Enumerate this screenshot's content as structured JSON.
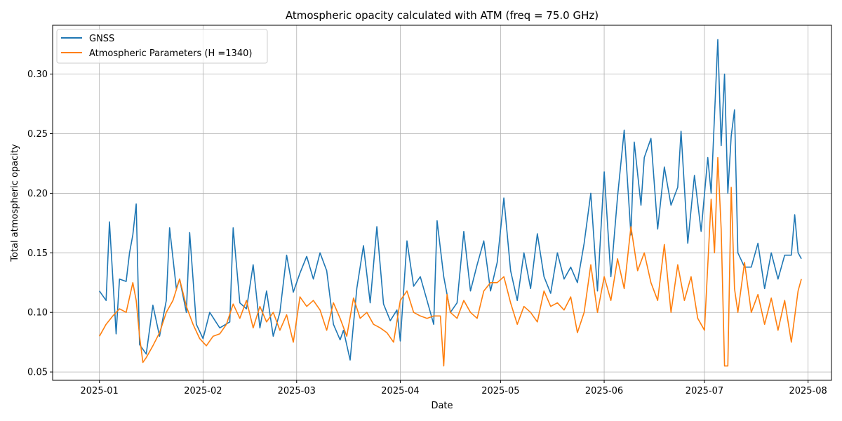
{
  "chart_data": {
    "type": "line",
    "title": "Atmospheric opacity calculated with ATM (freq = 75.0 GHz)",
    "xlabel": "Date",
    "ylabel": "Total atmospheric opacity",
    "x_type": "date",
    "xlim": [
      "2024-12-18",
      "2025-08-08"
    ],
    "ylim": [
      0.043,
      0.341
    ],
    "xticks": [
      "2025-01-01",
      "2025-02-01",
      "2025-03-01",
      "2025-04-01",
      "2025-05-01",
      "2025-06-01",
      "2025-07-01",
      "2025-08-01"
    ],
    "xtick_labels": [
      "2025-01",
      "2025-02",
      "2025-03",
      "2025-04",
      "2025-05",
      "2025-06",
      "2025-07",
      "2025-08"
    ],
    "yticks": [
      0.05,
      0.1,
      0.15,
      0.2,
      0.25,
      0.3
    ],
    "ytick_labels": [
      "0.05",
      "0.10",
      "0.15",
      "0.20",
      "0.25",
      "0.30"
    ],
    "grid": true,
    "legend_position": "top-left",
    "series": [
      {
        "name": "GNSS",
        "color": "#1f77b4",
        "x": [
          "2025-01-01",
          "2025-01-03",
          "2025-01-04",
          "2025-01-06",
          "2025-01-07",
          "2025-01-09",
          "2025-01-10",
          "2025-01-11",
          "2025-01-12",
          "2025-01-13",
          "2025-01-15",
          "2025-01-17",
          "2025-01-19",
          "2025-01-21",
          "2025-01-22",
          "2025-01-24",
          "2025-01-25",
          "2025-01-27",
          "2025-01-28",
          "2025-01-30",
          "2025-02-01",
          "2025-02-03",
          "2025-02-06",
          "2025-02-09",
          "2025-02-10",
          "2025-02-12",
          "2025-02-14",
          "2025-02-16",
          "2025-02-18",
          "2025-02-20",
          "2025-02-22",
          "2025-02-24",
          "2025-02-26",
          "2025-02-28",
          "2025-03-02",
          "2025-03-04",
          "2025-03-06",
          "2025-03-08",
          "2025-03-10",
          "2025-03-12",
          "2025-03-14",
          "2025-03-15",
          "2025-03-17",
          "2025-03-19",
          "2025-03-21",
          "2025-03-23",
          "2025-03-25",
          "2025-03-27",
          "2025-03-29",
          "2025-03-31",
          "2025-04-01",
          "2025-04-03",
          "2025-04-05",
          "2025-04-07",
          "2025-04-09",
          "2025-04-11",
          "2025-04-12",
          "2025-04-14",
          "2025-04-16",
          "2025-04-18",
          "2025-04-20",
          "2025-04-22",
          "2025-04-24",
          "2025-04-26",
          "2025-04-28",
          "2025-04-30",
          "2025-05-02",
          "2025-05-04",
          "2025-05-06",
          "2025-05-08",
          "2025-05-10",
          "2025-05-12",
          "2025-05-14",
          "2025-05-16",
          "2025-05-18",
          "2025-05-20",
          "2025-05-22",
          "2025-05-24",
          "2025-05-26",
          "2025-05-28",
          "2025-05-30",
          "2025-06-01",
          "2025-06-03",
          "2025-06-05",
          "2025-06-07",
          "2025-06-09",
          "2025-06-10",
          "2025-06-12",
          "2025-06-13",
          "2025-06-15",
          "2025-06-17",
          "2025-06-19",
          "2025-06-21",
          "2025-06-23",
          "2025-06-24",
          "2025-06-26",
          "2025-06-28",
          "2025-06-30",
          "2025-07-02",
          "2025-07-03",
          "2025-07-04",
          "2025-07-05",
          "2025-07-06",
          "2025-07-07",
          "2025-07-08",
          "2025-07-09",
          "2025-07-10",
          "2025-07-11",
          "2025-07-13",
          "2025-07-15",
          "2025-07-17",
          "2025-07-19",
          "2025-07-21",
          "2025-07-23",
          "2025-07-25",
          "2025-07-27",
          "2025-07-28",
          "2025-07-29",
          "2025-07-30"
        ],
        "y": [
          0.118,
          0.11,
          0.176,
          0.082,
          0.128,
          0.126,
          0.15,
          0.165,
          0.191,
          0.073,
          0.065,
          0.106,
          0.08,
          0.11,
          0.171,
          0.12,
          0.128,
          0.1,
          0.167,
          0.09,
          0.078,
          0.1,
          0.087,
          0.092,
          0.171,
          0.108,
          0.103,
          0.14,
          0.087,
          0.118,
          0.08,
          0.1,
          0.148,
          0.117,
          0.133,
          0.147,
          0.128,
          0.15,
          0.135,
          0.09,
          0.077,
          0.085,
          0.06,
          0.12,
          0.156,
          0.108,
          0.172,
          0.107,
          0.093,
          0.102,
          0.076,
          0.16,
          0.122,
          0.13,
          0.11,
          0.09,
          0.177,
          0.13,
          0.1,
          0.108,
          0.168,
          0.118,
          0.14,
          0.16,
          0.118,
          0.142,
          0.196,
          0.135,
          0.11,
          0.15,
          0.12,
          0.166,
          0.13,
          0.116,
          0.15,
          0.128,
          0.138,
          0.125,
          0.158,
          0.2,
          0.118,
          0.218,
          0.13,
          0.197,
          0.253,
          0.165,
          0.243,
          0.19,
          0.23,
          0.246,
          0.17,
          0.222,
          0.19,
          0.205,
          0.252,
          0.158,
          0.215,
          0.168,
          0.23,
          0.2,
          0.265,
          0.329,
          0.24,
          0.3,
          0.2,
          0.248,
          0.27,
          0.15,
          0.138,
          0.138,
          0.158,
          0.12,
          0.15,
          0.128,
          0.148,
          0.148,
          0.182,
          0.15,
          0.145
        ]
      },
      {
        "name": "Atmospheric Parameters (H =1340)",
        "color": "#ff7f0e",
        "x": [
          "2025-01-01",
          "2025-01-03",
          "2025-01-05",
          "2025-01-07",
          "2025-01-09",
          "2025-01-11",
          "2025-01-12",
          "2025-01-13",
          "2025-01-14",
          "2025-01-15",
          "2025-01-17",
          "2025-01-19",
          "2025-01-21",
          "2025-01-23",
          "2025-01-25",
          "2025-01-27",
          "2025-01-29",
          "2025-01-31",
          "2025-02-02",
          "2025-02-04",
          "2025-02-06",
          "2025-02-08",
          "2025-02-10",
          "2025-02-12",
          "2025-02-14",
          "2025-02-16",
          "2025-02-18",
          "2025-02-20",
          "2025-02-22",
          "2025-02-24",
          "2025-02-26",
          "2025-02-28",
          "2025-03-02",
          "2025-03-04",
          "2025-03-06",
          "2025-03-08",
          "2025-03-10",
          "2025-03-12",
          "2025-03-14",
          "2025-03-16",
          "2025-03-18",
          "2025-03-20",
          "2025-03-22",
          "2025-03-24",
          "2025-03-26",
          "2025-03-28",
          "2025-03-30",
          "2025-04-01",
          "2025-04-03",
          "2025-04-05",
          "2025-04-07",
          "2025-04-09",
          "2025-04-11",
          "2025-04-13",
          "2025-04-14",
          "2025-04-15",
          "2025-04-16",
          "2025-04-18",
          "2025-04-20",
          "2025-04-22",
          "2025-04-24",
          "2025-04-26",
          "2025-04-28",
          "2025-04-30",
          "2025-05-02",
          "2025-05-04",
          "2025-05-06",
          "2025-05-08",
          "2025-05-10",
          "2025-05-12",
          "2025-05-14",
          "2025-05-16",
          "2025-05-18",
          "2025-05-20",
          "2025-05-22",
          "2025-05-24",
          "2025-05-26",
          "2025-05-28",
          "2025-05-30",
          "2025-06-01",
          "2025-06-03",
          "2025-06-05",
          "2025-06-07",
          "2025-06-09",
          "2025-06-11",
          "2025-06-13",
          "2025-06-15",
          "2025-06-17",
          "2025-06-19",
          "2025-06-21",
          "2025-06-23",
          "2025-06-25",
          "2025-06-27",
          "2025-06-29",
          "2025-07-01",
          "2025-07-03",
          "2025-07-04",
          "2025-07-05",
          "2025-07-06",
          "2025-07-07",
          "2025-07-08",
          "2025-07-09",
          "2025-07-10",
          "2025-07-11",
          "2025-07-13",
          "2025-07-15",
          "2025-07-17",
          "2025-07-19",
          "2025-07-21",
          "2025-07-23",
          "2025-07-25",
          "2025-07-27",
          "2025-07-29",
          "2025-07-30"
        ],
        "y": [
          0.08,
          0.09,
          0.097,
          0.103,
          0.1,
          0.125,
          0.11,
          0.08,
          0.058,
          0.062,
          0.072,
          0.083,
          0.1,
          0.11,
          0.128,
          0.105,
          0.09,
          0.078,
          0.072,
          0.08,
          0.082,
          0.09,
          0.107,
          0.095,
          0.11,
          0.087,
          0.105,
          0.092,
          0.1,
          0.085,
          0.098,
          0.075,
          0.113,
          0.105,
          0.11,
          0.102,
          0.085,
          0.108,
          0.095,
          0.08,
          0.112,
          0.095,
          0.1,
          0.09,
          0.087,
          0.083,
          0.075,
          0.11,
          0.118,
          0.1,
          0.097,
          0.095,
          0.097,
          0.097,
          0.055,
          0.115,
          0.1,
          0.095,
          0.11,
          0.1,
          0.095,
          0.118,
          0.125,
          0.125,
          0.13,
          0.108,
          0.09,
          0.105,
          0.1,
          0.092,
          0.118,
          0.105,
          0.108,
          0.102,
          0.113,
          0.083,
          0.1,
          0.14,
          0.1,
          0.13,
          0.11,
          0.145,
          0.12,
          0.172,
          0.135,
          0.15,
          0.125,
          0.11,
          0.157,
          0.1,
          0.14,
          0.11,
          0.13,
          0.095,
          0.085,
          0.195,
          0.15,
          0.23,
          0.17,
          0.055,
          0.055,
          0.205,
          0.12,
          0.1,
          0.142,
          0.1,
          0.115,
          0.09,
          0.112,
          0.085,
          0.11,
          0.075,
          0.118,
          0.128
        ]
      }
    ]
  }
}
